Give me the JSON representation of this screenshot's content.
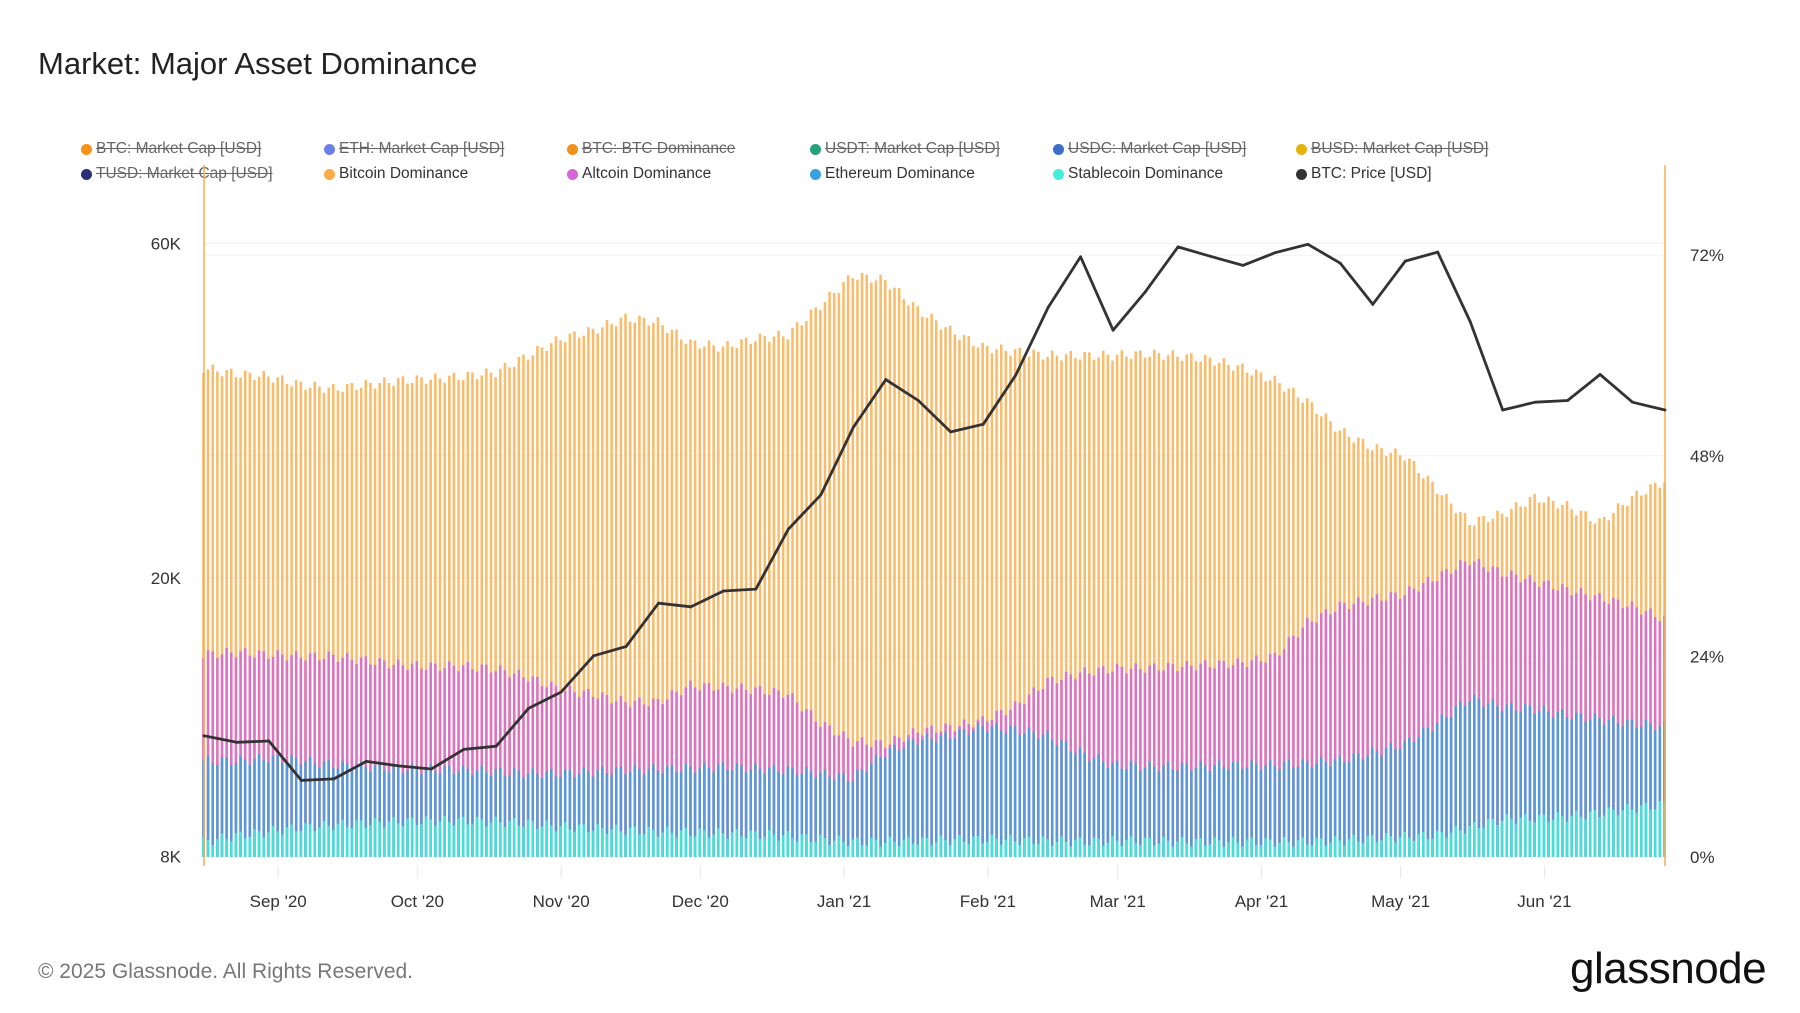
{
  "title": "Market: Major Asset Dominance",
  "footer": "© 2025 Glassnode. All Rights Reserved.",
  "logo_text": "glassnode",
  "legend": [
    {
      "label": "BTC: Market Cap [USD]",
      "color": "#f7931a",
      "hidden": true
    },
    {
      "label": "ETH: Market Cap [USD]",
      "color": "#6a7fe8",
      "hidden": true
    },
    {
      "label": "BTC: BTC Dominance",
      "color": "#f0901e",
      "hidden": true
    },
    {
      "label": "USDT: Market Cap [USD]",
      "color": "#26a17b",
      "hidden": true
    },
    {
      "label": "USDC: Market Cap [USD]",
      "color": "#3c6fc4",
      "hidden": true
    },
    {
      "label": "BUSD: Market Cap [USD]",
      "color": "#e8b20c",
      "hidden": true
    },
    {
      "label": "TUSD: Market Cap [USD]",
      "color": "#2b2f7a",
      "hidden": true
    },
    {
      "label": "Bitcoin Dominance",
      "color": "#f9ad4a",
      "hidden": false
    },
    {
      "label": "Altcoin Dominance",
      "color": "#d664d6",
      "hidden": false
    },
    {
      "label": "Ethereum Dominance",
      "color": "#3aa0e4",
      "hidden": false
    },
    {
      "label": "Stablecoin Dominance",
      "color": "#3ff0da",
      "hidden": false
    },
    {
      "label": "BTC: Price [USD]",
      "color": "#333333",
      "hidden": false
    }
  ],
  "chart_data": {
    "type": "bar",
    "overlay_line": "BTC: Price [USD]",
    "x_dates": [
      "2020-08-16",
      "2020-08-23",
      "2020-08-30",
      "2020-09-06",
      "2020-09-13",
      "2020-09-20",
      "2020-09-27",
      "2020-10-04",
      "2020-10-11",
      "2020-10-18",
      "2020-10-25",
      "2020-11-01",
      "2020-11-08",
      "2020-11-15",
      "2020-11-22",
      "2020-11-29",
      "2020-12-06",
      "2020-12-13",
      "2020-12-20",
      "2020-12-27",
      "2021-01-03",
      "2021-01-10",
      "2021-01-17",
      "2021-01-24",
      "2021-01-31",
      "2021-02-07",
      "2021-02-14",
      "2021-02-21",
      "2021-02-28",
      "2021-03-07",
      "2021-03-14",
      "2021-03-21",
      "2021-03-28",
      "2021-04-04",
      "2021-04-11",
      "2021-04-18",
      "2021-04-25",
      "2021-05-02",
      "2021-05-09",
      "2021-05-16",
      "2021-05-23",
      "2021-05-30",
      "2021-06-06",
      "2021-06-13",
      "2021-06-20",
      "2021-06-27"
    ],
    "x_ticks": [
      "Sep '20",
      "Oct '20",
      "Nov '20",
      "Dec '20",
      "Jan '21",
      "Feb '21",
      "Mar '21",
      "Apr '21",
      "May '21",
      "Jun '21"
    ],
    "x_tick_dates": [
      "2020-09-01",
      "2020-10-01",
      "2020-11-01",
      "2020-12-01",
      "2021-01-01",
      "2021-02-01",
      "2021-03-01",
      "2021-04-01",
      "2021-05-01",
      "2021-06-01"
    ],
    "x_range": [
      "2020-08-16",
      "2021-06-27"
    ],
    "left_axis": {
      "scale": "log",
      "ticks": [
        8000,
        20000,
        60000
      ],
      "tick_labels": [
        "8K",
        "20K",
        "60K"
      ],
      "ylim": [
        7760,
        77600
      ]
    },
    "right_axis": {
      "scale": "linear",
      "unit": "%",
      "ticks": [
        0,
        24,
        48,
        72
      ],
      "tick_labels": [
        "0%",
        "24%",
        "48%",
        "72%"
      ],
      "ylim": [
        -1.1,
        82.8
      ]
    },
    "grid": true,
    "legend_placement": "top",
    "series": [
      {
        "name": "Bitcoin Dominance",
        "axis": "right",
        "type": "bar",
        "color": "#f9ad4a",
        "values": [
          58.5,
          57.8,
          57.5,
          56.5,
          56,
          56.5,
          57,
          57.2,
          57.5,
          58,
          60,
          62,
          63,
          64.5,
          64,
          61.5,
          61,
          62,
          62.5,
          66,
          69.6,
          69,
          65.5,
          63,
          61,
          60.5,
          60,
          60,
          60,
          60.2,
          60,
          59.5,
          58.5,
          57,
          54.5,
          51,
          49,
          48,
          44,
          40,
          41,
          43,
          42,
          40,
          43,
          45
        ]
      },
      {
        "name": "Altcoin Dominance",
        "axis": "right",
        "type": "bar",
        "color": "#d664d6",
        "values": [
          24.2,
          24.5,
          24.2,
          24,
          24,
          23.5,
          23,
          22.8,
          22.8,
          22.5,
          21.5,
          20,
          19.5,
          18.5,
          18.5,
          20.5,
          20.3,
          20,
          19.5,
          16,
          13.8,
          13.5,
          15,
          15.5,
          16.3,
          18,
          21,
          22,
          22.5,
          22.6,
          22.8,
          23,
          23.2,
          24,
          28,
          30,
          30.8,
          31.5,
          33.5,
          35.5,
          34,
          33,
          32,
          31,
          30,
          28.5
        ]
      },
      {
        "name": "Ethereum Dominance",
        "axis": "right",
        "type": "bar",
        "color": "#3aa0e4",
        "values": [
          11.5,
          11.5,
          11.8,
          11.6,
          11,
          10.8,
          10.6,
          10.5,
          10.4,
          10.2,
          10,
          10,
          10.2,
          10.4,
          10.5,
          10.6,
          10.8,
          10.6,
          10.4,
          10,
          9.4,
          12.5,
          14,
          14.5,
          15.6,
          15.2,
          14.5,
          12.5,
          11,
          10.8,
          10.8,
          10.9,
          11,
          11,
          11.2,
          11.5,
          12.5,
          13.5,
          16,
          19,
          18,
          17.7,
          17,
          16.5,
          16,
          15.6
        ]
      },
      {
        "name": "Stablecoin Dominance",
        "axis": "right",
        "type": "bar",
        "color": "#3ff0da",
        "values": [
          1.8,
          2.5,
          3,
          3.5,
          3.8,
          4,
          4.2,
          4.3,
          4.3,
          4.2,
          4,
          3.6,
          3.4,
          3.2,
          3,
          2.9,
          2.8,
          2.7,
          2.5,
          2.1,
          1.8,
          1.8,
          1.9,
          2,
          2.1,
          2,
          1.9,
          1.8,
          1.9,
          1.9,
          1.8,
          1.8,
          1.8,
          1.8,
          1.8,
          1.9,
          2.2,
          2.4,
          2.6,
          3.5,
          4.5,
          4.6,
          4.8,
          5.2,
          5.8,
          6.2
        ]
      },
      {
        "name": "BTC: Price [USD]",
        "axis": "left",
        "type": "line",
        "color": "#333333",
        "values": [
          11900,
          11650,
          11700,
          10280,
          10330,
          10940,
          10780,
          10670,
          11380,
          11500,
          13030,
          13740,
          15480,
          15960,
          18400,
          18180,
          19150,
          19270,
          23470,
          26270,
          32780,
          38350,
          35800,
          32290,
          33110,
          38900,
          48600,
          57400,
          45100,
          51200,
          59300,
          57500,
          55800,
          58200,
          59800,
          56200,
          49100,
          56600,
          58300,
          46400,
          34700,
          35600,
          35800,
          39000,
          35600,
          34700
        ]
      }
    ]
  }
}
